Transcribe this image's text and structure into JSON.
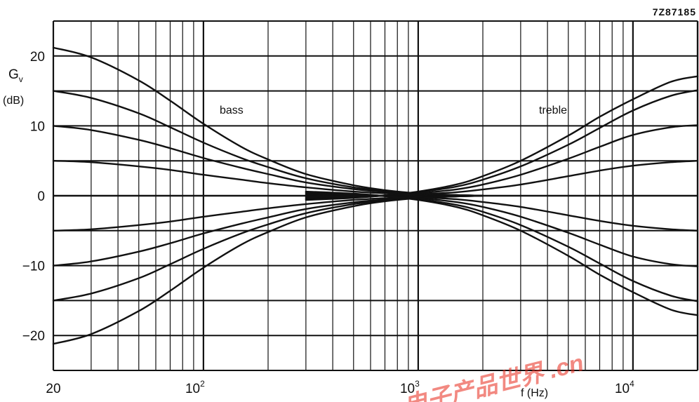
{
  "figure_code": "7Z87185",
  "watermark_text": "电子产品世界 .cn",
  "chart_data": {
    "type": "line",
    "title": "",
    "xlabel": "f (Hz)",
    "ylabel_main": "G",
    "ylabel_sub": "v",
    "ylabel_unit": "(dB)",
    "xscale": "log",
    "xlim": [
      20,
      20000
    ],
    "ylim": [
      -25,
      25
    ],
    "grid": true,
    "x_ticks": [
      {
        "value": 20,
        "base": "20",
        "exp": ""
      },
      {
        "value": 100,
        "base": "10",
        "exp": "2"
      },
      {
        "value": 1000,
        "base": "10",
        "exp": "3"
      },
      {
        "value": 10000,
        "base": "10",
        "exp": "4"
      }
    ],
    "y_ticks": [
      {
        "value": 20,
        "label": "20"
      },
      {
        "value": 10,
        "label": "10"
      },
      {
        "value": 0,
        "label": "0"
      },
      {
        "value": -10,
        "label": "−10"
      },
      {
        "value": -20,
        "label": "−20"
      }
    ],
    "annotations": [
      {
        "text": "bass",
        "x": 150,
        "y": 12.3
      },
      {
        "text": "treble",
        "x": 8000,
        "y": 12.3
      }
    ],
    "series": [
      {
        "group": "bass",
        "x": [
          20,
          30,
          50,
          70,
          100,
          150,
          200,
          300,
          500,
          700,
          1000,
          1500,
          2000
        ],
        "y": [
          21.2,
          19.8,
          16.5,
          13.6,
          10.3,
          7.0,
          5.2,
          3.1,
          1.5,
          0.8,
          0.35,
          0.1,
          0
        ]
      },
      {
        "group": "bass",
        "x": [
          20,
          30,
          50,
          70,
          100,
          150,
          200,
          300,
          500,
          700,
          1000,
          1500,
          2000
        ],
        "y": [
          15.0,
          14.0,
          11.8,
          9.8,
          7.6,
          5.4,
          4.1,
          2.5,
          1.2,
          0.7,
          0.3,
          0.1,
          0
        ]
      },
      {
        "group": "bass",
        "x": [
          20,
          30,
          50,
          70,
          100,
          150,
          200,
          300,
          500,
          700,
          1000,
          1500,
          2000
        ],
        "y": [
          10.0,
          9.4,
          8.0,
          6.8,
          5.4,
          4.0,
          3.1,
          1.9,
          0.95,
          0.55,
          0.25,
          0.08,
          0
        ]
      },
      {
        "group": "bass",
        "x": [
          20,
          30,
          50,
          70,
          100,
          150,
          200,
          300,
          500,
          700,
          1000,
          1500,
          2000
        ],
        "y": [
          5.0,
          4.8,
          4.2,
          3.7,
          3.0,
          2.3,
          1.8,
          1.2,
          0.6,
          0.35,
          0.15,
          0.05,
          0
        ]
      },
      {
        "group": "bass",
        "x": [
          20,
          30,
          50,
          70,
          100,
          150,
          200,
          300,
          500,
          700,
          1000,
          1500,
          2000
        ],
        "y": [
          -5.0,
          -4.8,
          -4.2,
          -3.7,
          -3.0,
          -2.3,
          -1.8,
          -1.2,
          -0.6,
          -0.35,
          -0.15,
          -0.05,
          0
        ]
      },
      {
        "group": "bass",
        "x": [
          20,
          30,
          50,
          70,
          100,
          150,
          200,
          300,
          500,
          700,
          1000,
          1500,
          2000
        ],
        "y": [
          -10.0,
          -9.4,
          -8.0,
          -6.8,
          -5.4,
          -4.0,
          -3.1,
          -1.9,
          -0.95,
          -0.55,
          -0.25,
          -0.08,
          0
        ]
      },
      {
        "group": "bass",
        "x": [
          20,
          30,
          50,
          70,
          100,
          150,
          200,
          300,
          500,
          700,
          1000,
          1500,
          2000
        ],
        "y": [
          -15.0,
          -14.0,
          -11.8,
          -9.8,
          -7.6,
          -5.4,
          -4.1,
          -2.5,
          -1.2,
          -0.7,
          -0.3,
          -0.1,
          0
        ]
      },
      {
        "group": "bass",
        "x": [
          20,
          30,
          50,
          70,
          100,
          150,
          200,
          300,
          500,
          700,
          1000,
          1500,
          2000
        ],
        "y": [
          -21.2,
          -19.8,
          -16.5,
          -13.6,
          -10.3,
          -7.0,
          -5.2,
          -3.1,
          -1.5,
          -0.8,
          -0.35,
          -0.1,
          0
        ]
      },
      {
        "group": "treble",
        "x": [
          300,
          500,
          700,
          1000,
          1500,
          2000,
          3000,
          5000,
          7000,
          10000,
          15000,
          20000
        ],
        "y": [
          -0.6,
          -0.3,
          0.05,
          0.6,
          1.6,
          2.8,
          5.0,
          8.6,
          11.3,
          13.8,
          16.3,
          17.1
        ]
      },
      {
        "group": "treble",
        "x": [
          300,
          500,
          700,
          1000,
          1500,
          2000,
          3000,
          5000,
          7000,
          10000,
          15000,
          20000
        ],
        "y": [
          -0.5,
          -0.25,
          0.05,
          0.5,
          1.3,
          2.3,
          4.2,
          7.3,
          9.7,
          12.2,
          14.3,
          15.1
        ]
      },
      {
        "group": "treble",
        "x": [
          300,
          500,
          700,
          1000,
          1500,
          2000,
          3000,
          5000,
          7000,
          10000,
          15000,
          20000
        ],
        "y": [
          -0.35,
          -0.15,
          0.05,
          0.35,
          0.9,
          1.6,
          3.0,
          5.3,
          7.0,
          8.7,
          9.8,
          10.1
        ]
      },
      {
        "group": "treble",
        "x": [
          300,
          500,
          700,
          1000,
          1500,
          2000,
          3000,
          5000,
          7000,
          10000,
          15000,
          20000
        ],
        "y": [
          -0.2,
          -0.1,
          0,
          0.2,
          0.5,
          0.9,
          1.6,
          2.8,
          3.6,
          4.3,
          4.8,
          5.0
        ]
      },
      {
        "group": "treble",
        "x": [
          300,
          500,
          700,
          1000,
          1500,
          2000,
          3000,
          5000,
          7000,
          10000,
          15000,
          20000
        ],
        "y": [
          0.2,
          0.1,
          0,
          -0.2,
          -0.5,
          -0.9,
          -1.6,
          -2.8,
          -3.6,
          -4.3,
          -4.8,
          -5.0
        ]
      },
      {
        "group": "treble",
        "x": [
          300,
          500,
          700,
          1000,
          1500,
          2000,
          3000,
          5000,
          7000,
          10000,
          15000,
          20000
        ],
        "y": [
          0.35,
          0.15,
          -0.05,
          -0.35,
          -0.9,
          -1.6,
          -3.0,
          -5.3,
          -7.0,
          -8.7,
          -9.8,
          -10.1
        ]
      },
      {
        "group": "treble",
        "x": [
          300,
          500,
          700,
          1000,
          1500,
          2000,
          3000,
          5000,
          7000,
          10000,
          15000,
          20000
        ],
        "y": [
          0.5,
          0.25,
          -0.05,
          -0.5,
          -1.3,
          -2.3,
          -4.2,
          -7.3,
          -9.7,
          -12.2,
          -14.3,
          -15.1
        ]
      },
      {
        "group": "treble",
        "x": [
          300,
          500,
          700,
          1000,
          1500,
          2000,
          3000,
          5000,
          7000,
          10000,
          15000,
          20000
        ],
        "y": [
          0.6,
          0.3,
          -0.05,
          -0.6,
          -1.6,
          -2.8,
          -5.0,
          -8.6,
          -11.3,
          -13.8,
          -16.3,
          -17.1
        ]
      }
    ]
  },
  "colors": {
    "curve": "#111111",
    "grid": "#111111",
    "background": "#ffffff",
    "watermark": "#e8291c"
  }
}
